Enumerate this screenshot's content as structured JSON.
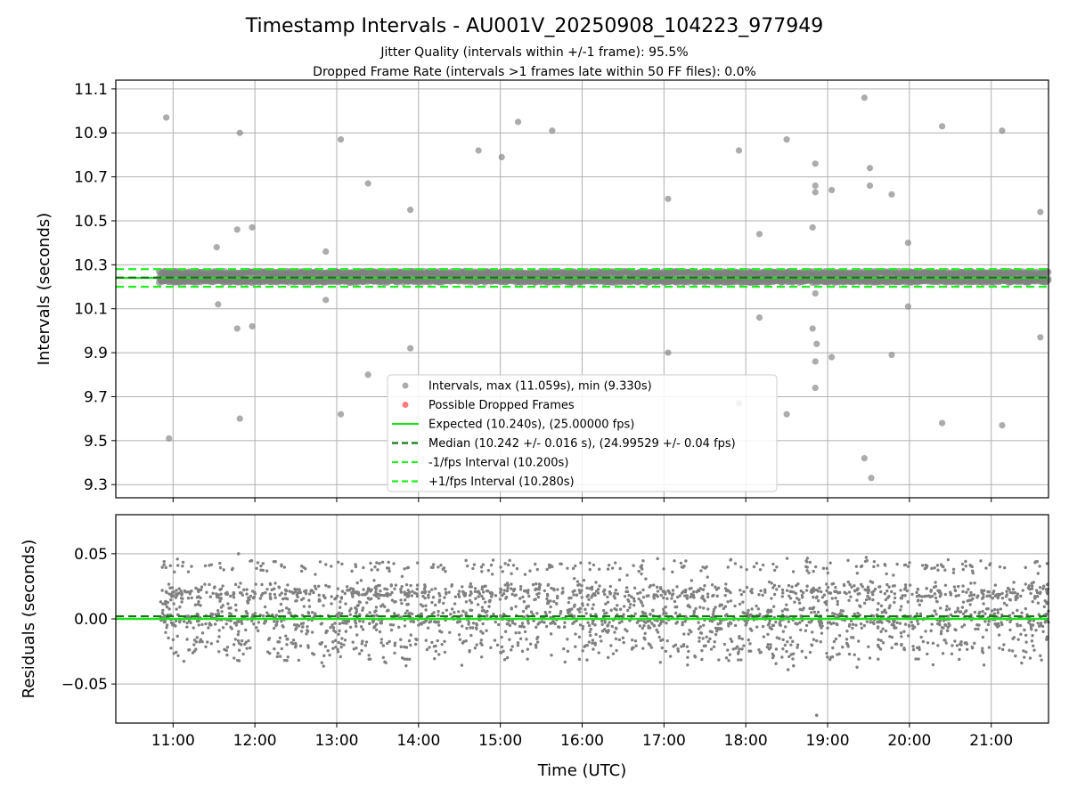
{
  "figure": {
    "title": "Timestamp Intervals - AU001V_20250908_104223_977949",
    "subtitle_1": "Jitter Quality (intervals within +/-1 frame): 95.5%",
    "subtitle_2": "Dropped Frame Rate (intervals >1 frames late within 50 FF files): 0.0%",
    "xlabel": "Time (UTC)"
  },
  "colors": {
    "scatter": "#808080",
    "dropped": "#ff3333",
    "expected": "#22dd22",
    "median": "#117711",
    "bounds": "#22ee22",
    "grid": "#b0b0b0"
  },
  "chart_data": [
    {
      "type": "scatter",
      "panel": "intervals",
      "ylabel": "Intervals (seconds)",
      "xlim": [
        "10:18",
        "21:42"
      ],
      "ylim": [
        9.24,
        11.14
      ],
      "yticks": [
        9.3,
        9.5,
        9.7,
        9.9,
        10.1,
        10.3,
        10.5,
        10.7,
        10.9,
        11.1
      ],
      "ytick_labels": [
        "9.3",
        "9.5",
        "9.7",
        "9.9",
        "10.1",
        "10.3",
        "10.5",
        "10.7",
        "10.9",
        "11.1"
      ],
      "grid": true,
      "legend_position": "lower-center",
      "legend": [
        {
          "label": "Intervals, max (11.059s), min (9.330s)",
          "kind": "marker",
          "color": "#808080"
        },
        {
          "label": "Possible Dropped Frames",
          "kind": "marker",
          "color": "#ff3333"
        },
        {
          "label": "Expected (10.240s), (25.00000 fps)",
          "kind": "line",
          "color": "#22dd22"
        },
        {
          "label": "Median (10.242 +/- 0.016 s), (24.99529 +/- 0.04 fps)",
          "kind": "dashed",
          "color": "#117711"
        },
        {
          "label": "-1/fps Interval (10.200s)",
          "kind": "dashed",
          "color": "#22ee22"
        },
        {
          "label": "+1/fps Interval (10.280s)",
          "kind": "dashed",
          "color": "#22ee22"
        }
      ],
      "reference_lines": {
        "expected": 10.24,
        "median": 10.242,
        "lower": 10.2,
        "upper": 10.28
      },
      "dense_band": {
        "x_start": "10:50",
        "x_end": "21:42",
        "y_low": 10.22,
        "y_high": 10.27
      },
      "outliers": [
        {
          "x": "10:55",
          "y": 10.97
        },
        {
          "x": "10:57",
          "y": 9.51
        },
        {
          "x": "11:32",
          "y": 10.38
        },
        {
          "x": "11:33",
          "y": 10.12
        },
        {
          "x": "11:47",
          "y": 10.46
        },
        {
          "x": "11:47",
          "y": 10.01
        },
        {
          "x": "11:49",
          "y": 10.9
        },
        {
          "x": "11:49",
          "y": 9.6
        },
        {
          "x": "11:58",
          "y": 10.47
        },
        {
          "x": "11:58",
          "y": 10.02
        },
        {
          "x": "12:52",
          "y": 10.36
        },
        {
          "x": "12:52",
          "y": 10.14
        },
        {
          "x": "13:03",
          "y": 10.87
        },
        {
          "x": "13:03",
          "y": 9.62
        },
        {
          "x": "13:23",
          "y": 10.67
        },
        {
          "x": "13:23",
          "y": 9.8
        },
        {
          "x": "13:54",
          "y": 10.55
        },
        {
          "x": "13:54",
          "y": 9.92
        },
        {
          "x": "14:44",
          "y": 10.82
        },
        {
          "x": "15:01",
          "y": 10.79
        },
        {
          "x": "15:13",
          "y": 10.95
        },
        {
          "x": "15:38",
          "y": 10.91
        },
        {
          "x": "17:03",
          "y": 10.6
        },
        {
          "x": "17:03",
          "y": 9.9
        },
        {
          "x": "17:55",
          "y": 10.82
        },
        {
          "x": "17:55",
          "y": 9.67
        },
        {
          "x": "18:10",
          "y": 10.44
        },
        {
          "x": "18:10",
          "y": 10.06
        },
        {
          "x": "18:30",
          "y": 10.87
        },
        {
          "x": "18:30",
          "y": 9.62
        },
        {
          "x": "18:49",
          "y": 10.47
        },
        {
          "x": "18:49",
          "y": 10.01
        },
        {
          "x": "18:51",
          "y": 10.76
        },
        {
          "x": "18:51",
          "y": 10.66
        },
        {
          "x": "18:51",
          "y": 10.63
        },
        {
          "x": "18:51",
          "y": 10.17
        },
        {
          "x": "18:52",
          "y": 9.94
        },
        {
          "x": "18:51",
          "y": 9.86
        },
        {
          "x": "18:51",
          "y": 9.74
        },
        {
          "x": "19:03",
          "y": 10.64
        },
        {
          "x": "19:03",
          "y": 9.88
        },
        {
          "x": "19:27",
          "y": 11.06
        },
        {
          "x": "19:27",
          "y": 9.42
        },
        {
          "x": "19:31",
          "y": 10.74
        },
        {
          "x": "19:31",
          "y": 10.66
        },
        {
          "x": "19:32",
          "y": 9.33
        },
        {
          "x": "19:47",
          "y": 10.62
        },
        {
          "x": "19:47",
          "y": 9.89
        },
        {
          "x": "19:59",
          "y": 10.4
        },
        {
          "x": "19:59",
          "y": 10.11
        },
        {
          "x": "20:24",
          "y": 10.93
        },
        {
          "x": "20:24",
          "y": 9.58
        },
        {
          "x": "21:08",
          "y": 10.91
        },
        {
          "x": "21:08",
          "y": 9.57
        },
        {
          "x": "21:36",
          "y": 10.54
        },
        {
          "x": "21:36",
          "y": 9.97
        }
      ]
    },
    {
      "type": "scatter",
      "panel": "residuals",
      "ylabel": "Residuals (seconds)",
      "xlabel": "Time (UTC)",
      "xlim": [
        "10:18",
        "21:42"
      ],
      "xticks": [
        "11:00",
        "12:00",
        "13:00",
        "14:00",
        "15:00",
        "16:00",
        "17:00",
        "18:00",
        "19:00",
        "20:00",
        "21:00"
      ],
      "ylim": [
        -0.08,
        0.08
      ],
      "yticks": [
        -0.05,
        0.0,
        0.05
      ],
      "ytick_labels": [
        "−0.05",
        "0.00",
        "0.05"
      ],
      "grid": true,
      "reference_lines": {
        "expected": 0.0,
        "median": 0.002
      },
      "residual_bands": [
        {
          "center": 0.0,
          "spread": 0.006,
          "share": 0.42
        },
        {
          "center": 0.02,
          "spread": 0.004,
          "share": 0.33
        },
        {
          "center": -0.02,
          "spread": 0.004,
          "share": 0.13
        },
        {
          "center": 0.04,
          "spread": 0.003,
          "share": 0.08
        },
        {
          "center": -0.03,
          "spread": 0.003,
          "share": 0.04
        }
      ],
      "residual_x_range": [
        "10:50",
        "21:42"
      ],
      "residual_outliers": [
        {
          "x": "11:48",
          "y": 0.05
        },
        {
          "x": "18:31",
          "y": -0.039
        },
        {
          "x": "18:35",
          "y": -0.036
        },
        {
          "x": "18:52",
          "y": -0.074
        }
      ]
    }
  ]
}
